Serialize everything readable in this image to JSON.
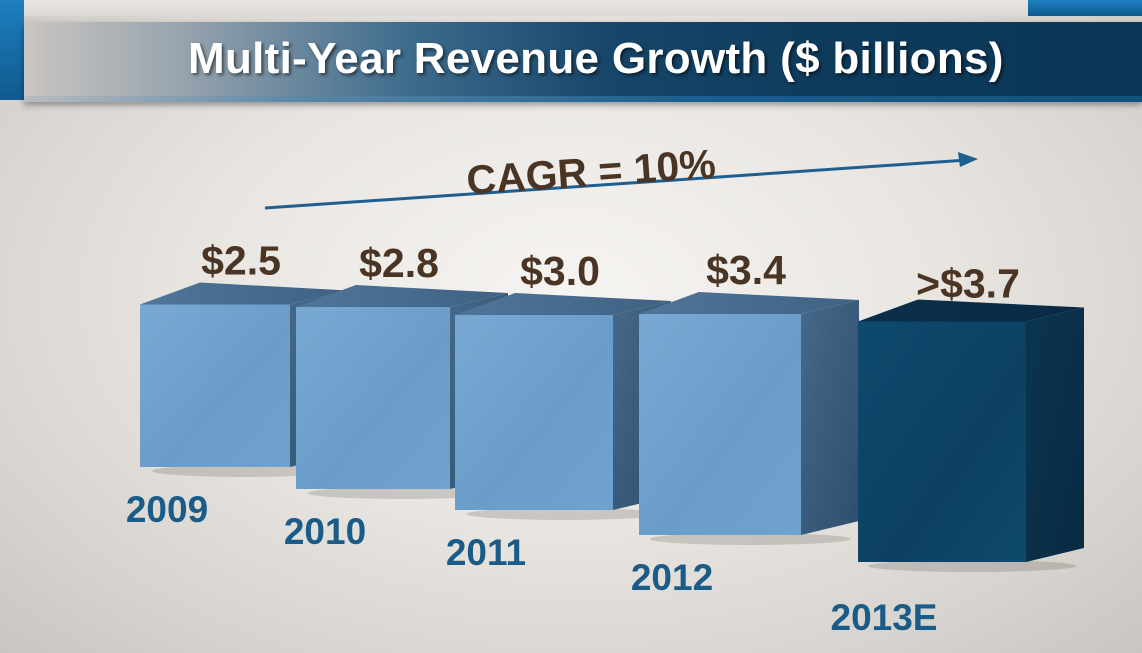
{
  "title": "Multi-Year Revenue Growth ($ billions)",
  "cagr_label": "CAGR = 10%",
  "colors": {
    "title_text": "#ffffff",
    "value_label": "#4a3525",
    "year_label": "#1a5c87",
    "arrow": "#1f5f8f",
    "bar_actual_front": "#6f9fcb",
    "bar_estimate_front": "#0f4466"
  },
  "chart_data": {
    "type": "bar",
    "title": "Multi-Year Revenue Growth ($ billions)",
    "xlabel": "",
    "ylabel": "$ billions",
    "categories": [
      "2009",
      "2010",
      "2011",
      "2012",
      "2013E"
    ],
    "values": [
      2.5,
      2.8,
      3.0,
      3.4,
      3.7
    ],
    "value_labels": [
      "$2.5",
      "$2.8",
      "$3.0",
      "$3.4",
      ">$3.7"
    ],
    "estimate": [
      false,
      false,
      false,
      false,
      true
    ],
    "annotation": "CAGR = 10%",
    "grid": false,
    "legend": "none"
  }
}
